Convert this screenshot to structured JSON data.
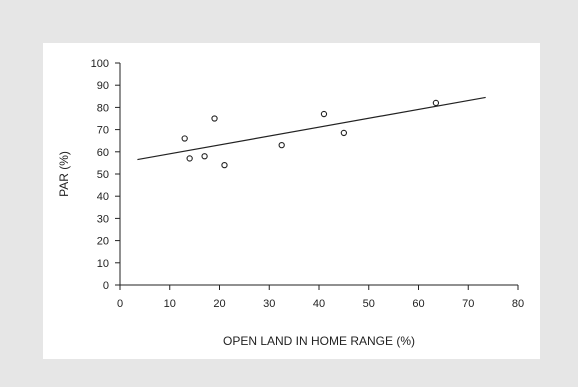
{
  "chart_data": {
    "type": "scatter",
    "title": "",
    "xlabel": "OPEN LAND IN HOME RANGE (%)",
    "ylabel": "PAR (%)",
    "xlim": [
      0,
      80
    ],
    "ylim": [
      0,
      100
    ],
    "xticks": [
      "0",
      "10",
      "20",
      "30",
      "40",
      "50",
      "60",
      "70",
      "80"
    ],
    "yticks": [
      "0",
      "10",
      "20",
      "30",
      "40",
      "50",
      "60",
      "70",
      "80",
      "90",
      "100"
    ],
    "grid": false,
    "series": [
      {
        "points": [
          {
            "x": 13,
            "y": 66
          },
          {
            "x": 14,
            "y": 57
          },
          {
            "x": 17,
            "y": 58
          },
          {
            "x": 19,
            "y": 75
          },
          {
            "x": 21,
            "y": 54
          },
          {
            "x": 32.5,
            "y": 63
          },
          {
            "x": 41,
            "y": 77
          },
          {
            "x": 45,
            "y": 68.5
          },
          {
            "x": 63.5,
            "y": 82
          }
        ]
      }
    ],
    "trendline": {
      "x": [
        3.5,
        73.5
      ],
      "y": [
        56.5,
        84.5
      ]
    }
  }
}
